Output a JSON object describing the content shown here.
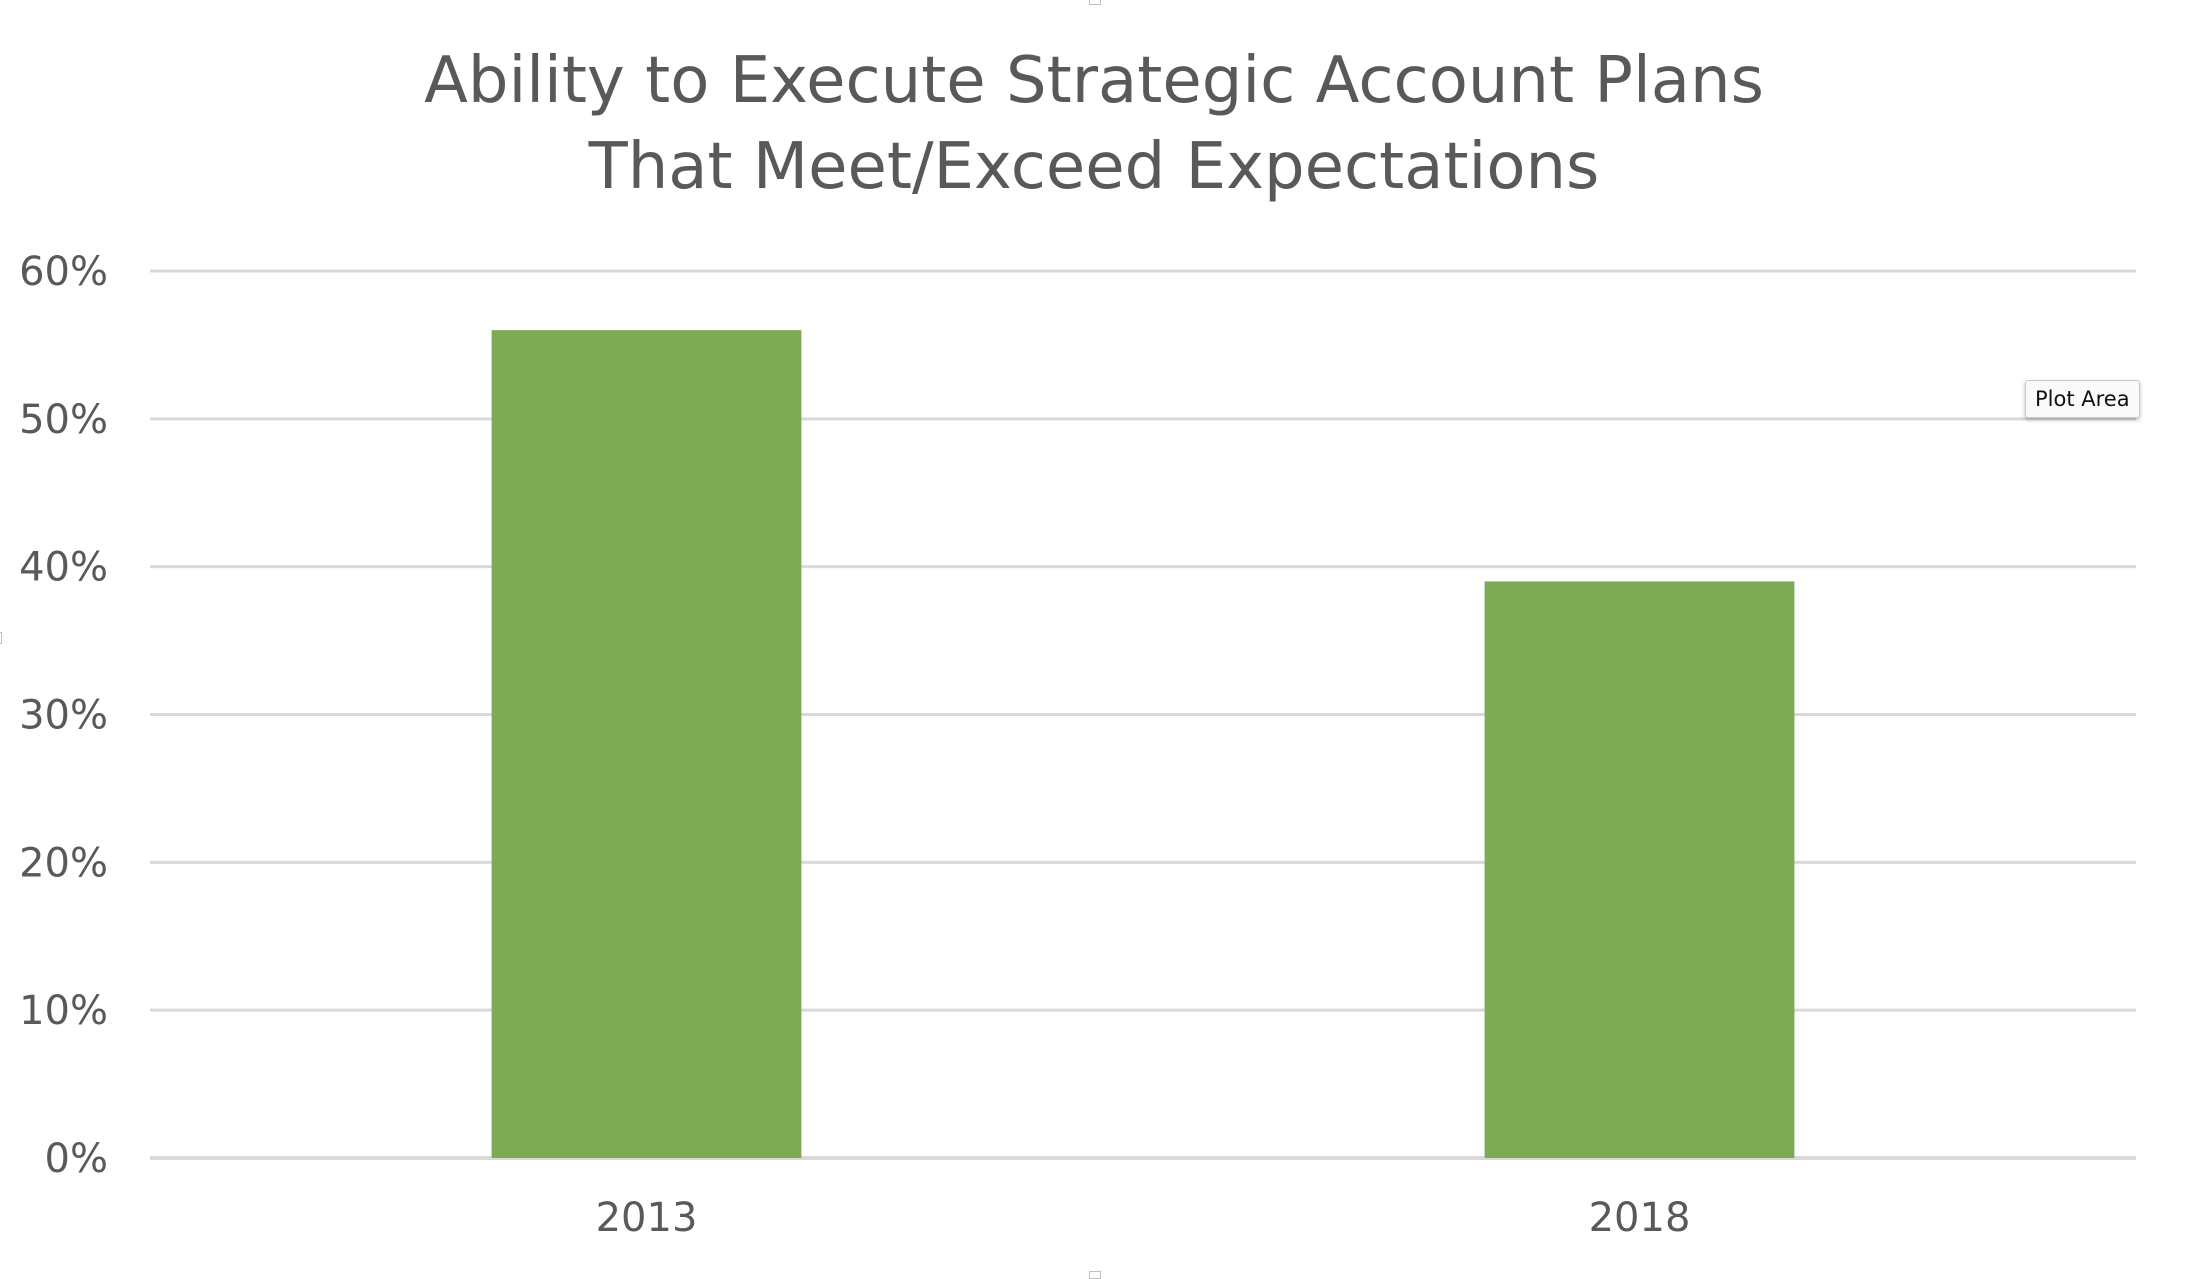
{
  "colors": {
    "bar": "#7faa55",
    "grid": "#d9d9d9",
    "text": "#595959",
    "background": "#ffffff"
  },
  "tooltip": {
    "label": "Plot Area"
  },
  "chart_data": {
    "type": "bar",
    "title_lines": [
      "Ability to Execute Strategic Account Plans",
      "That Meet/Exceed Expectations"
    ],
    "categories": [
      "2013",
      "2018"
    ],
    "values": [
      0.56,
      0.39
    ],
    "y_ticks": [
      "0%",
      "10%",
      "20%",
      "30%",
      "40%",
      "50%",
      "60%"
    ],
    "ylim": [
      0,
      0.6
    ],
    "grid": true,
    "legend": "none"
  }
}
